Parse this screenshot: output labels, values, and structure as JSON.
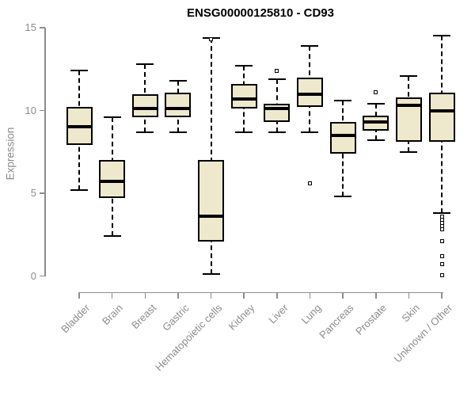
{
  "chart_data": {
    "type": "boxplot",
    "title": "ENSG00000125810 - CD93",
    "ylabel": "Expression",
    "xlabel": "",
    "ylim": [
      0,
      15
    ],
    "yticks": [
      0,
      5,
      10,
      15
    ],
    "grid": false,
    "legend": null,
    "box_fill": "#EEE8CD",
    "box_stroke": "#000000",
    "axis_color": "#8C8C8C",
    "categories": [
      "Bladder",
      "Brain",
      "Breast",
      "Gastric",
      "Hematopoietic cells",
      "Kidney",
      "Liver",
      "Lung",
      "Pancreas",
      "Prostate",
      "Skin",
      "Unknown / Other"
    ],
    "series": [
      {
        "category": "Bladder",
        "whisker_low": 5.2,
        "q1": 7.9,
        "median": 9.0,
        "q3": 10.2,
        "whisker_high": 12.4,
        "outliers": []
      },
      {
        "category": "Brain",
        "whisker_low": 2.4,
        "q1": 4.7,
        "median": 5.7,
        "q3": 7.0,
        "whisker_high": 9.6,
        "outliers": []
      },
      {
        "category": "Breast",
        "whisker_low": 8.7,
        "q1": 9.6,
        "median": 10.1,
        "q3": 11.0,
        "whisker_high": 12.8,
        "outliers": []
      },
      {
        "category": "Gastric",
        "whisker_low": 8.7,
        "q1": 9.6,
        "median": 10.1,
        "q3": 11.1,
        "whisker_high": 11.8,
        "outliers": []
      },
      {
        "category": "Hematopoietic cells",
        "whisker_low": 0.1,
        "q1": 2.1,
        "median": 3.6,
        "q3": 7.0,
        "whisker_high": 14.4,
        "outliers": [
          14.3
        ]
      },
      {
        "category": "Kidney",
        "whisker_low": 8.7,
        "q1": 10.1,
        "median": 10.7,
        "q3": 11.6,
        "whisker_high": 12.7,
        "outliers": []
      },
      {
        "category": "Liver",
        "whisker_low": 8.7,
        "q1": 9.3,
        "median": 10.1,
        "q3": 10.4,
        "whisker_high": 11.9,
        "outliers": [
          12.4
        ]
      },
      {
        "category": "Lung",
        "whisker_low": 8.7,
        "q1": 10.2,
        "median": 11.0,
        "q3": 12.0,
        "whisker_high": 13.9,
        "outliers": [
          5.6
        ]
      },
      {
        "category": "Pancreas",
        "whisker_low": 4.8,
        "q1": 7.4,
        "median": 8.5,
        "q3": 9.3,
        "whisker_high": 10.6,
        "outliers": []
      },
      {
        "category": "Prostate",
        "whisker_low": 8.2,
        "q1": 8.8,
        "median": 9.3,
        "q3": 9.7,
        "whisker_high": 10.4,
        "outliers": [
          11.1
        ]
      },
      {
        "category": "Skin",
        "whisker_low": 7.5,
        "q1": 8.1,
        "median": 10.3,
        "q3": 10.8,
        "whisker_high": 12.1,
        "outliers": []
      },
      {
        "category": "Unknown / Other",
        "whisker_low": 3.8,
        "q1": 8.1,
        "median": 10.0,
        "q3": 11.1,
        "whisker_high": 14.5,
        "outliers": [
          3.6,
          3.4,
          3.2,
          3.0,
          2.8,
          2.1,
          1.2,
          0.7,
          0.05
        ]
      }
    ]
  }
}
